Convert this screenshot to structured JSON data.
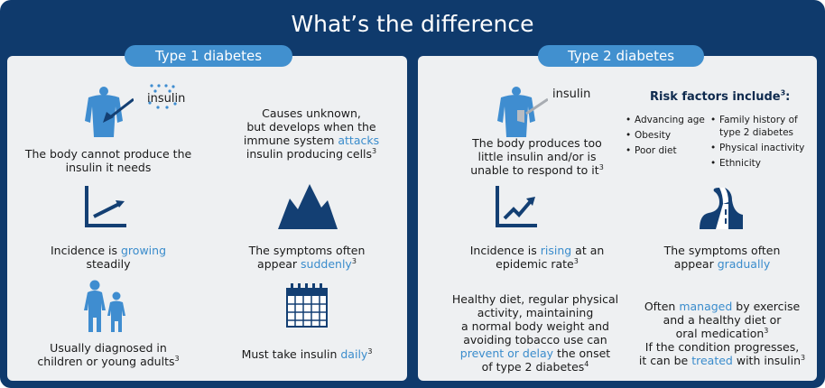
{
  "title": "What’s the difference",
  "type1": {
    "header": "Type 1 diabetes",
    "insulin_label": "insulin",
    "body_text": "The body cannot produce the insulin it needs",
    "cause_a": "Causes unknown,",
    "cause_b": "but develops when the",
    "cause_c1": "immune system ",
    "cause_hl": "attacks",
    "cause_d": "insulin producing cells",
    "cause_sup": "3",
    "incidence_a": "Incidence is ",
    "incidence_hl": "growing",
    "incidence_b": "steadily",
    "symptoms_a": "The symptoms often",
    "symptoms_b1": "appear ",
    "symptoms_hl": "suddenly",
    "symptoms_sup": "3",
    "diag_a": "Usually diagnosed in",
    "diag_b": "children or young adults",
    "diag_sup": "3",
    "take_a": "Must take insulin ",
    "take_hl": "daily",
    "take_sup": "3"
  },
  "type2": {
    "header": "Type 2 diabetes",
    "insulin_label": "insulin",
    "body_a": "The body produces too",
    "body_b": "little insulin and/or is",
    "body_c": "unable to respond to it",
    "body_sup": "3",
    "risk_title": "Risk factors include",
    "risk_sup": "3",
    "risk_col1": [
      "Advancing age",
      "Obesity",
      "Poor diet"
    ],
    "risk_col2": [
      "Family history of type 2 diabetes",
      "Physical inactivity",
      "Ethnicity"
    ],
    "incidence_a": "Incidence is ",
    "incidence_hl": "rising",
    "incidence_b": " at an",
    "incidence_c": "epidemic rate",
    "incidence_sup": "3",
    "symptoms_a": "The symptoms often",
    "symptoms_b1": "appear ",
    "symptoms_hl": "gradually",
    "healthy_a": "Healthy diet, regular physical",
    "healthy_b": "activity, maintaining",
    "healthy_c": "a normal body weight and",
    "healthy_d": "avoiding tobacco use can",
    "healthy_hl": "prevent or delay",
    "healthy_e": " the onset",
    "healthy_f": "of type 2 diabetes",
    "healthy_sup": "4",
    "managed_a1": "Often ",
    "managed_hl": "managed",
    "managed_a2": " by exercise",
    "managed_b": "and a healthy diet or",
    "managed_c": "oral medication",
    "managed_c_sup": "3",
    "managed_d": "If the condition progresses,",
    "managed_e1": "it can be ",
    "managed_e_hl": "treated",
    "managed_e2": " with insulin",
    "managed_e_sup": "3"
  },
  "colors": {
    "frame": "#0f3a6c",
    "panel": "#eef0f2",
    "pill": "#4190cf",
    "icon": "#133f73",
    "body_icon": "#3f8dd0",
    "highlight": "#3a8ccc"
  }
}
